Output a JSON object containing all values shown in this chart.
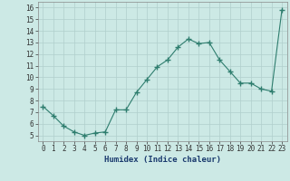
{
  "x": [
    0,
    1,
    2,
    3,
    4,
    5,
    6,
    7,
    8,
    9,
    10,
    11,
    12,
    13,
    14,
    15,
    16,
    17,
    18,
    19,
    20,
    21,
    22,
    23
  ],
  "y": [
    7.5,
    6.7,
    5.8,
    5.3,
    5.0,
    5.2,
    5.3,
    7.2,
    7.2,
    8.7,
    9.8,
    10.9,
    11.5,
    12.6,
    13.3,
    12.9,
    13.0,
    11.5,
    10.5,
    9.5,
    9.5,
    9.0,
    8.8,
    15.8
  ],
  "line_color": "#2e7d6e",
  "marker": "+",
  "marker_size": 4,
  "bg_color": "#cce9e5",
  "grid_color": "#b0cfcc",
  "xlabel": "Humidex (Indice chaleur)",
  "ylim": [
    4.5,
    16.5
  ],
  "xlim": [
    -0.5,
    23.5
  ],
  "yticks": [
    5,
    6,
    7,
    8,
    9,
    10,
    11,
    12,
    13,
    14,
    15,
    16
  ],
  "xtick_labels": [
    "0",
    "1",
    "2",
    "3",
    "4",
    "5",
    "6",
    "7",
    "8",
    "9",
    "10",
    "11",
    "12",
    "13",
    "14",
    "15",
    "16",
    "17",
    "18",
    "19",
    "20",
    "21",
    "22",
    "23"
  ],
  "tick_fontsize": 5.5,
  "xlabel_fontsize": 6.5,
  "xlabel_color": "#1a3a6e"
}
